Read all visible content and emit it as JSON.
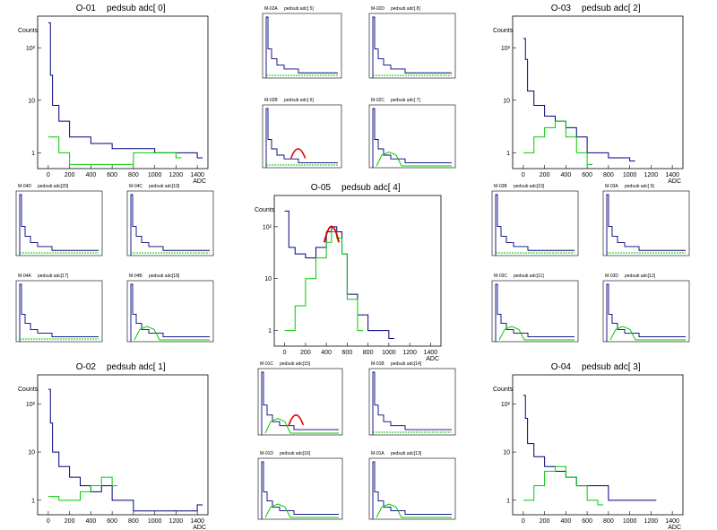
{
  "chart_data": [
    {
      "name": "O-01",
      "channel": "pedsub adc[ 0]",
      "type": "line",
      "xlabel": "ADC",
      "ylabel": "Counts",
      "xlim": [
        -100,
        1500
      ],
      "ylim": [
        0.5,
        400
      ],
      "yscale": "log",
      "x_ticks": [
        "0",
        "200",
        "400",
        "600",
        "800",
        "1000",
        "1200",
        "1400"
      ],
      "y_ticks": [
        "1",
        "10",
        "10²"
      ],
      "series": [
        {
          "name": "blue",
          "color": "#00007f",
          "bins": [
            {
              "x": 0,
              "y": 300
            },
            {
              "x": 20,
              "y": 30
            },
            {
              "x": 40,
              "y": 8
            },
            {
              "x": 100,
              "y": 4
            },
            {
              "x": 200,
              "y": 2
            },
            {
              "x": 300,
              "y": 2
            },
            {
              "x": 400,
              "y": 1.5
            },
            {
              "x": 600,
              "y": 1.2
            },
            {
              "x": 800,
              "y": 1.2
            },
            {
              "x": 1000,
              "y": 1
            },
            {
              "x": 1200,
              "y": 1
            },
            {
              "x": 1400,
              "y": 0.8
            }
          ]
        },
        {
          "name": "green",
          "color": "#00cc00",
          "bins": [
            {
              "x": 0,
              "y": 2
            },
            {
              "x": 100,
              "y": 1
            },
            {
              "x": 200,
              "y": 0.6
            },
            {
              "x": 400,
              "y": 0.6
            },
            {
              "x": 800,
              "y": 1
            },
            {
              "x": 1000,
              "y": 1
            },
            {
              "x": 1200,
              "y": 0.8
            }
          ]
        }
      ]
    },
    {
      "name": "O-03",
      "channel": "pedsub adc[ 2]",
      "type": "line",
      "xlabel": "ADC",
      "ylabel": "Counts",
      "xlim": [
        -100,
        1500
      ],
      "ylim": [
        0.5,
        400
      ],
      "yscale": "log",
      "x_ticks": [
        "0",
        "200",
        "400",
        "600",
        "800",
        "1000",
        "1200",
        "1400"
      ],
      "y_ticks": [
        "1",
        "10",
        "10²"
      ],
      "series": [
        {
          "name": "blue",
          "color": "#00007f",
          "bins": [
            {
              "x": 0,
              "y": 150
            },
            {
              "x": 20,
              "y": 60
            },
            {
              "x": 40,
              "y": 15
            },
            {
              "x": 100,
              "y": 8
            },
            {
              "x": 200,
              "y": 5
            },
            {
              "x": 300,
              "y": 4
            },
            {
              "x": 400,
              "y": 3
            },
            {
              "x": 500,
              "y": 2
            },
            {
              "x": 600,
              "y": 1
            },
            {
              "x": 800,
              "y": 0.8
            },
            {
              "x": 1000,
              "y": 0.7
            }
          ]
        },
        {
          "name": "green",
          "color": "#00cc00",
          "bins": [
            {
              "x": 0,
              "y": 1
            },
            {
              "x": 100,
              "y": 2
            },
            {
              "x": 200,
              "y": 3
            },
            {
              "x": 300,
              "y": 4
            },
            {
              "x": 400,
              "y": 2
            },
            {
              "x": 500,
              "y": 1
            },
            {
              "x": 600,
              "y": 0.6
            }
          ]
        }
      ]
    },
    {
      "name": "O-05",
      "channel": "pedsub adc[ 4]",
      "type": "line",
      "xlabel": "ADC",
      "ylabel": "Counts",
      "xlim": [
        -100,
        1500
      ],
      "ylim": [
        0.5,
        400
      ],
      "yscale": "log",
      "x_ticks": [
        "0",
        "200",
        "400",
        "600",
        "800",
        "1000",
        "1200",
        "1400"
      ],
      "y_ticks": [
        "1",
        "10",
        "10²"
      ],
      "series": [
        {
          "name": "blue",
          "color": "#00007f",
          "bins": [
            {
              "x": 0,
              "y": 200
            },
            {
              "x": 40,
              "y": 40
            },
            {
              "x": 100,
              "y": 30
            },
            {
              "x": 200,
              "y": 25
            },
            {
              "x": 300,
              "y": 40
            },
            {
              "x": 400,
              "y": 80
            },
            {
              "x": 450,
              "y": 100
            },
            {
              "x": 500,
              "y": 80
            },
            {
              "x": 550,
              "y": 30
            },
            {
              "x": 600,
              "y": 5
            },
            {
              "x": 700,
              "y": 2
            },
            {
              "x": 800,
              "y": 1
            },
            {
              "x": 1000,
              "y": 0.7
            }
          ]
        },
        {
          "name": "green",
          "color": "#00cc00",
          "bins": [
            {
              "x": 0,
              "y": 1
            },
            {
              "x": 100,
              "y": 3
            },
            {
              "x": 200,
              "y": 10
            },
            {
              "x": 300,
              "y": 25
            },
            {
              "x": 400,
              "y": 50
            },
            {
              "x": 450,
              "y": 80
            },
            {
              "x": 500,
              "y": 60
            },
            {
              "x": 550,
              "y": 30
            },
            {
              "x": 600,
              "y": 4
            },
            {
              "x": 700,
              "y": 1
            }
          ]
        },
        {
          "name": "fit",
          "color": "#dd0000",
          "bins": [
            {
              "x": 380,
              "y": 50
            },
            {
              "x": 450,
              "y": 100
            },
            {
              "x": 520,
              "y": 50
            }
          ]
        }
      ]
    },
    {
      "name": "O-02",
      "channel": "pedsub adc[ 1]",
      "type": "line",
      "xlabel": "ADC",
      "ylabel": "Counts",
      "xlim": [
        -100,
        1500
      ],
      "ylim": [
        0.5,
        400
      ],
      "yscale": "log",
      "x_ticks": [
        "0",
        "200",
        "400",
        "600",
        "800",
        "1000",
        "1200",
        "1400"
      ],
      "y_ticks": [
        "1",
        "10",
        "10²"
      ],
      "series": [
        {
          "name": "blue",
          "color": "#00007f",
          "bins": [
            {
              "x": 0,
              "y": 200
            },
            {
              "x": 20,
              "y": 40
            },
            {
              "x": 40,
              "y": 10
            },
            {
              "x": 100,
              "y": 5
            },
            {
              "x": 200,
              "y": 3
            },
            {
              "x": 300,
              "y": 2
            },
            {
              "x": 400,
              "y": 1.5
            },
            {
              "x": 500,
              "y": 2
            },
            {
              "x": 600,
              "y": 1
            },
            {
              "x": 800,
              "y": 0.6
            },
            {
              "x": 1400,
              "y": 0.8
            }
          ]
        },
        {
          "name": "green",
          "color": "#00cc00",
          "bins": [
            {
              "x": 0,
              "y": 1.2
            },
            {
              "x": 100,
              "y": 1
            },
            {
              "x": 300,
              "y": 1.5
            },
            {
              "x": 400,
              "y": 2
            },
            {
              "x": 500,
              "y": 3
            },
            {
              "x": 600,
              "y": 2
            }
          ]
        }
      ]
    },
    {
      "name": "O-04",
      "channel": "pedsub adc[ 3]",
      "type": "line",
      "xlabel": "ADC",
      "ylabel": "Counts",
      "xlim": [
        -100,
        1500
      ],
      "ylim": [
        0.5,
        400
      ],
      "yscale": "log",
      "x_ticks": [
        "0",
        "200",
        "400",
        "600",
        "800",
        "1000",
        "1200",
        "1400"
      ],
      "y_ticks": [
        "1",
        "10",
        "10²"
      ],
      "series": [
        {
          "name": "blue",
          "color": "#00007f",
          "bins": [
            {
              "x": 0,
              "y": 150
            },
            {
              "x": 20,
              "y": 50
            },
            {
              "x": 40,
              "y": 15
            },
            {
              "x": 100,
              "y": 8
            },
            {
              "x": 200,
              "y": 5
            },
            {
              "x": 300,
              "y": 4
            },
            {
              "x": 400,
              "y": 3
            },
            {
              "x": 500,
              "y": 2
            },
            {
              "x": 600,
              "y": 2
            },
            {
              "x": 800,
              "y": 1
            },
            {
              "x": 1200,
              "y": 1
            }
          ]
        },
        {
          "name": "green",
          "color": "#00cc00",
          "bins": [
            {
              "x": 0,
              "y": 1
            },
            {
              "x": 100,
              "y": 2
            },
            {
              "x": 200,
              "y": 4
            },
            {
              "x": 300,
              "y": 5
            },
            {
              "x": 400,
              "y": 3
            },
            {
              "x": 500,
              "y": 2
            },
            {
              "x": 600,
              "y": 1
            },
            {
              "x": 700,
              "y": 0.8
            }
          ]
        }
      ]
    },
    {
      "name": "M-02A",
      "channel": "pedsub adc[ 5]",
      "type": "line",
      "series": [
        {
          "name": "blue",
          "color": "#00007f",
          "shape": "decay"
        },
        {
          "name": "green",
          "color": "#00cc00",
          "shape": "flat"
        }
      ]
    },
    {
      "name": "M-02D",
      "channel": "pedsub adc[ 8]",
      "type": "line",
      "series": [
        {
          "name": "blue",
          "color": "#00007f",
          "shape": "decay"
        },
        {
          "name": "green",
          "color": "#00cc00",
          "shape": "flat"
        }
      ]
    },
    {
      "name": "M-02B",
      "channel": "pedsub adc[ 6]",
      "type": "line",
      "series": [
        {
          "name": "blue",
          "color": "#00007f",
          "shape": "decay"
        },
        {
          "name": "green",
          "color": "#00cc00",
          "shape": "flat"
        },
        {
          "name": "fit",
          "color": "#dd0000",
          "shape": "peak"
        }
      ]
    },
    {
      "name": "M-02C",
      "channel": "pedsub adc[ 7]",
      "type": "line",
      "series": [
        {
          "name": "blue",
          "color": "#00007f",
          "shape": "decay"
        },
        {
          "name": "green",
          "color": "#00cc00",
          "shape": "bump"
        }
      ]
    },
    {
      "name": "M-04D",
      "channel": "pedsub adc[20]",
      "type": "line",
      "series": [
        {
          "name": "blue",
          "color": "#00007f",
          "shape": "decay"
        },
        {
          "name": "green",
          "color": "#00cc00",
          "shape": "flat"
        }
      ]
    },
    {
      "name": "M-04C",
      "channel": "pedsub adc[19]",
      "type": "line",
      "series": [
        {
          "name": "blue",
          "color": "#00007f",
          "shape": "decay"
        },
        {
          "name": "green",
          "color": "#00cc00",
          "shape": "flat"
        }
      ]
    },
    {
      "name": "M-04A",
      "channel": "pedsub adc[17]",
      "type": "line",
      "series": [
        {
          "name": "blue",
          "color": "#00007f",
          "shape": "decay"
        },
        {
          "name": "green",
          "color": "#00cc00",
          "shape": "flat"
        }
      ]
    },
    {
      "name": "M-04B",
      "channel": "pedsub adc[18]",
      "type": "line",
      "series": [
        {
          "name": "blue",
          "color": "#00007f",
          "shape": "decay"
        },
        {
          "name": "green",
          "color": "#00cc00",
          "shape": "bump"
        }
      ]
    },
    {
      "name": "M-03B",
      "channel": "pedsub adc[10]",
      "type": "line",
      "series": [
        {
          "name": "blue",
          "color": "#00007f",
          "shape": "decay"
        },
        {
          "name": "green",
          "color": "#00cc00",
          "shape": "flat"
        }
      ]
    },
    {
      "name": "M-03A",
      "channel": "pedsub adc[ 9]",
      "type": "line",
      "series": [
        {
          "name": "blue",
          "color": "#00007f",
          "shape": "decay"
        },
        {
          "name": "green",
          "color": "#00cc00",
          "shape": "flat"
        }
      ]
    },
    {
      "name": "M-03C",
      "channel": "pedsub adc[11]",
      "type": "line",
      "series": [
        {
          "name": "blue",
          "color": "#00007f",
          "shape": "decay"
        },
        {
          "name": "green",
          "color": "#00cc00",
          "shape": "bump"
        }
      ]
    },
    {
      "name": "M-03D",
      "channel": "pedsub adc[12]",
      "type": "line",
      "series": [
        {
          "name": "blue",
          "color": "#00007f",
          "shape": "decay"
        },
        {
          "name": "green",
          "color": "#00cc00",
          "shape": "bump"
        }
      ]
    },
    {
      "name": "M-01C",
      "channel": "pedsub adc[15]",
      "type": "line",
      "series": [
        {
          "name": "blue",
          "color": "#00007f",
          "shape": "decay"
        },
        {
          "name": "green",
          "color": "#00cc00",
          "shape": "bump"
        },
        {
          "name": "fit",
          "color": "#dd0000",
          "shape": "peak"
        }
      ]
    },
    {
      "name": "M-01B",
      "channel": "pedsub adc[14]",
      "type": "line",
      "series": [
        {
          "name": "blue",
          "color": "#00007f",
          "shape": "decay"
        },
        {
          "name": "green",
          "color": "#00cc00",
          "shape": "flat"
        }
      ]
    },
    {
      "name": "M-01D",
      "channel": "pedsub adc[16]",
      "type": "line",
      "series": [
        {
          "name": "blue",
          "color": "#00007f",
          "shape": "decay"
        },
        {
          "name": "green",
          "color": "#00cc00",
          "shape": "bump"
        }
      ]
    },
    {
      "name": "M-01A",
      "channel": "pedsub adc[13]",
      "type": "line",
      "series": [
        {
          "name": "blue",
          "color": "#00007f",
          "shape": "decay"
        },
        {
          "name": "green",
          "color": "#00cc00",
          "shape": "bump"
        }
      ]
    }
  ]
}
